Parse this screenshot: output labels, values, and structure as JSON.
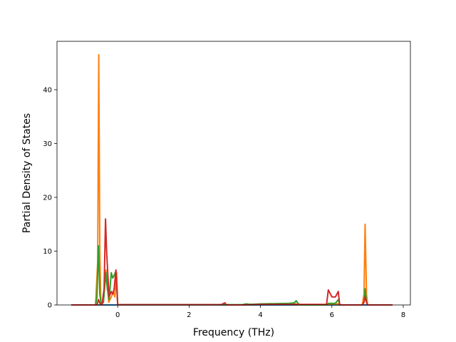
{
  "chart_data": {
    "type": "line",
    "title": "",
    "xlabel": "Frequency (THz)",
    "ylabel": "Partial Density of States",
    "xlim": [
      -1.7,
      8.2
    ],
    "ylim": [
      0,
      49
    ],
    "xticks": [
      0,
      2,
      4,
      6,
      8
    ],
    "yticks": [
      0,
      10,
      20,
      30,
      40
    ],
    "xtick_labels": [
      "0",
      "2",
      "4",
      "6",
      "8"
    ],
    "ytick_labels": [
      "0",
      "10",
      "20",
      "30",
      "40"
    ],
    "grid": false,
    "legend": "none",
    "series": [
      {
        "color": "#1f77b4",
        "points": [
          [
            -1.3,
            0
          ],
          [
            7.7,
            0
          ]
        ]
      },
      {
        "color": "#ff7f0e",
        "points": [
          [
            -1.3,
            0
          ],
          [
            -0.62,
            0
          ],
          [
            -0.56,
            8
          ],
          [
            -0.53,
            46.5
          ],
          [
            -0.5,
            10
          ],
          [
            -0.47,
            0
          ],
          [
            -0.4,
            0.5
          ],
          [
            -0.33,
            6.5
          ],
          [
            -0.29,
            4
          ],
          [
            -0.25,
            0.5
          ],
          [
            -0.18,
            1.5
          ],
          [
            -0.12,
            2.5
          ],
          [
            -0.08,
            1.5
          ],
          [
            -0.03,
            6
          ],
          [
            0.0,
            0
          ],
          [
            0.1,
            0.05
          ],
          [
            2.9,
            0.05
          ],
          [
            3.0,
            0.1
          ],
          [
            3.1,
            0
          ],
          [
            3.5,
            0
          ],
          [
            3.55,
            0.1
          ],
          [
            5.0,
            0.2
          ],
          [
            5.05,
            0
          ],
          [
            5.85,
            0
          ],
          [
            5.9,
            0.2
          ],
          [
            6.2,
            0.2
          ],
          [
            6.25,
            0
          ],
          [
            6.85,
            0
          ],
          [
            6.9,
            2
          ],
          [
            6.93,
            15
          ],
          [
            6.97,
            2
          ],
          [
            7.0,
            0
          ],
          [
            7.7,
            0
          ]
        ]
      },
      {
        "color": "#2ca02c",
        "points": [
          [
            -1.3,
            0
          ],
          [
            -0.62,
            0
          ],
          [
            -0.58,
            1.5
          ],
          [
            -0.54,
            11
          ],
          [
            -0.5,
            2
          ],
          [
            -0.46,
            0
          ],
          [
            -0.4,
            0.5
          ],
          [
            -0.33,
            6
          ],
          [
            -0.29,
            3
          ],
          [
            -0.24,
            1
          ],
          [
            -0.18,
            6
          ],
          [
            -0.14,
            5
          ],
          [
            -0.1,
            5.5
          ],
          [
            -0.05,
            6.3
          ],
          [
            0.0,
            0
          ],
          [
            0.1,
            0.05
          ],
          [
            3.5,
            0.05
          ],
          [
            3.6,
            0.2
          ],
          [
            3.7,
            0.1
          ],
          [
            4.0,
            0.2
          ],
          [
            4.8,
            0.3
          ],
          [
            4.95,
            0.4
          ],
          [
            5.0,
            0.8
          ],
          [
            5.05,
            0.3
          ],
          [
            5.1,
            0
          ],
          [
            5.85,
            0
          ],
          [
            5.9,
            0.3
          ],
          [
            6.1,
            0.3
          ],
          [
            6.18,
            1
          ],
          [
            6.22,
            0
          ],
          [
            6.85,
            0
          ],
          [
            6.9,
            0.5
          ],
          [
            6.93,
            3
          ],
          [
            6.97,
            0.5
          ],
          [
            7.0,
            0
          ],
          [
            7.7,
            0
          ]
        ]
      },
      {
        "color": "#d62728",
        "points": [
          [
            -1.3,
            0
          ],
          [
            -0.58,
            0
          ],
          [
            -0.54,
            1
          ],
          [
            -0.5,
            0.3
          ],
          [
            -0.44,
            0
          ],
          [
            -0.38,
            3
          ],
          [
            -0.34,
            16
          ],
          [
            -0.31,
            10
          ],
          [
            -0.27,
            5
          ],
          [
            -0.24,
            1.5
          ],
          [
            -0.18,
            2.5
          ],
          [
            -0.14,
            2
          ],
          [
            -0.1,
            3
          ],
          [
            -0.05,
            6.5
          ],
          [
            0.0,
            0
          ],
          [
            0.1,
            0.05
          ],
          [
            2.9,
            0.05
          ],
          [
            3.0,
            0.4
          ],
          [
            3.05,
            0
          ],
          [
            3.5,
            0
          ],
          [
            4.0,
            0.1
          ],
          [
            5.0,
            0.1
          ],
          [
            5.85,
            0.1
          ],
          [
            5.9,
            2.8
          ],
          [
            6.0,
            1.5
          ],
          [
            6.1,
            1.5
          ],
          [
            6.18,
            2.5
          ],
          [
            6.22,
            0
          ],
          [
            6.85,
            0
          ],
          [
            6.9,
            0.5
          ],
          [
            6.93,
            1.5
          ],
          [
            6.97,
            0.5
          ],
          [
            7.0,
            0
          ],
          [
            7.7,
            0
          ]
        ]
      }
    ]
  }
}
